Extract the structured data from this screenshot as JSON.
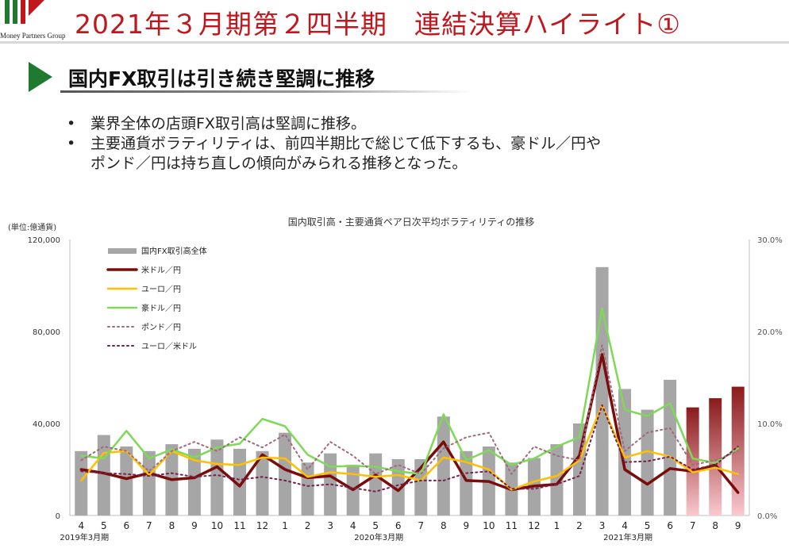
{
  "header": {
    "logo_text": "Money Partners Group",
    "title": "2021年３月期第２四半期　連結決算ハイライト①",
    "colors": {
      "title": "#c0161c",
      "arrow": "#1f7a2f"
    }
  },
  "section": {
    "heading": "国内FX取引は引き続き堅調に推移",
    "bullets": [
      {
        "marker": "•",
        "lines": [
          "業界全体の店頭FX取引高は堅調に推移。"
        ]
      },
      {
        "marker": "•",
        "lines": [
          "主要通貨ボラティリティは、前四半期比で総じて低下するも、豪ドル／円や",
          "ポンド／円は持ち直しの傾向がみられる推移となった。"
        ]
      }
    ]
  },
  "chart_data": {
    "type": "bar+line",
    "title": "国内取引高・主要通貨ペア日次平均ボラティリティの推移",
    "ylabel_left": "(単位:億通貨)",
    "y_left": {
      "min": 0,
      "max": 120000,
      "ticks": [
        "0",
        "40,000",
        "80,000",
        "120,000"
      ],
      "tick_values": [
        0,
        40000,
        80000,
        120000
      ]
    },
    "y_right": {
      "min": 0,
      "max": 30,
      "ticks": [
        "0.0%",
        "10.0%",
        "20.0%",
        "30.0%"
      ],
      "tick_values": [
        0,
        10,
        20,
        30
      ]
    },
    "categories": [
      "4",
      "5",
      "6",
      "7",
      "8",
      "9",
      "10",
      "11",
      "12",
      "1",
      "2",
      "3",
      "4",
      "5",
      "6",
      "7",
      "8",
      "9",
      "10",
      "11",
      "12",
      "1",
      "2",
      "3",
      "4",
      "5",
      "6",
      "7",
      "8",
      "9"
    ],
    "period_labels": [
      {
        "label": "2019年3月期",
        "index": 0
      },
      {
        "label": "2020年3月期",
        "index": 13
      },
      {
        "label": "2021年3月期",
        "index": 24
      }
    ],
    "grid": false,
    "legend": "top-left",
    "bar_series": {
      "name": "国内FX取引高全体",
      "color": "#a6a6a6",
      "highlight_from_index": 27,
      "highlight_colors": [
        "#8b1a1a",
        "#f9c9cf"
      ],
      "values": [
        28000,
        35000,
        30000,
        28000,
        31000,
        29000,
        33000,
        29000,
        28000,
        36000,
        23000,
        27000,
        22000,
        27000,
        24500,
        24500,
        43000,
        28000,
        30000,
        23000,
        25000,
        31000,
        40000,
        108000,
        55000,
        46000,
        59000,
        47000,
        51000,
        56000
      ]
    },
    "line_series": [
      {
        "name": "米ドル／円",
        "color": "#7a0c0c",
        "style": "solid",
        "width": 3.5,
        "values": [
          5.0,
          4.6,
          4.0,
          4.6,
          3.9,
          4.1,
          5.3,
          3.2,
          6.6,
          5.0,
          4.1,
          4.3,
          2.8,
          4.4,
          2.7,
          5.2,
          8.0,
          3.8,
          3.7,
          2.8,
          3.2,
          3.4,
          6.5,
          17.5,
          5.0,
          3.4,
          5.1,
          4.8,
          5.5,
          2.5
        ]
      },
      {
        "name": "ユーロ／円",
        "color": "#ffc000",
        "style": "solid",
        "width": 2.5,
        "values": [
          3.8,
          6.8,
          7.0,
          4.4,
          7.0,
          6.0,
          5.6,
          5.5,
          6.3,
          6.2,
          4.2,
          4.7,
          4.5,
          4.2,
          4.4,
          3.8,
          6.3,
          5.8,
          5.0,
          2.8,
          3.7,
          4.3,
          6.0,
          12.0,
          6.3,
          7.0,
          6.4,
          4.7,
          5.2,
          4.5
        ]
      },
      {
        "name": "豪ドル／円",
        "color": "#7ed957",
        "style": "solid",
        "width": 2.5,
        "values": [
          6.5,
          6.2,
          9.2,
          6.2,
          7.2,
          6.3,
          7.4,
          7.8,
          10.5,
          9.7,
          6.6,
          5.3,
          5.4,
          5.3,
          4.8,
          4.5,
          11.0,
          6.0,
          7.1,
          5.5,
          6.2,
          7.5,
          8.5,
          22.5,
          11.5,
          10.8,
          12.2,
          6.2,
          5.7,
          7.3
        ]
      },
      {
        "name": "ポンド／円",
        "color": "#a06a7a",
        "style": "dotted",
        "width": 2,
        "values": [
          6.0,
          7.5,
          7.0,
          4.8,
          7.0,
          8.0,
          7.0,
          8.5,
          7.4,
          8.8,
          5.0,
          8.0,
          6.5,
          4.5,
          5.5,
          4.5,
          7.3,
          8.5,
          9.0,
          4.5,
          7.5,
          6.5,
          6.0,
          18.5,
          7.0,
          9.0,
          9.5,
          5.5,
          6.0,
          7.0
        ]
      },
      {
        "name": "ユーロ／米ドル",
        "color": "#7a1e4e",
        "style": "dotted",
        "width": 2,
        "values": [
          4.8,
          4.6,
          4.5,
          4.3,
          4.6,
          4.2,
          4.4,
          3.9,
          4.2,
          3.8,
          3.2,
          3.4,
          3.0,
          2.6,
          3.3,
          3.8,
          3.8,
          4.6,
          4.8,
          2.9,
          2.9,
          3.4,
          4.3,
          12.0,
          5.8,
          5.9,
          6.4,
          5.0,
          5.5,
          7.5
        ]
      }
    ]
  }
}
